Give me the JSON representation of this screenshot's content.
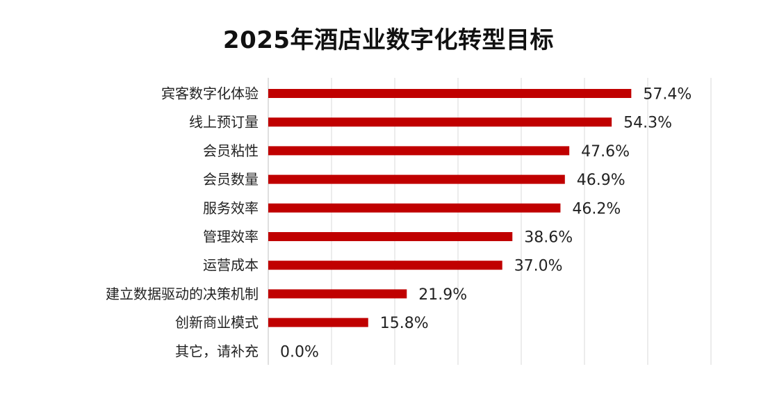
{
  "chart_data": {
    "type": "bar",
    "orientation": "horizontal",
    "title": "2025年酒店业数字化转型目标",
    "categories": [
      "宾客数字化体验",
      "线上预订量",
      "会员粘性",
      "会员数量",
      "服务效率",
      "管理效率",
      "运营成本",
      "建立数据驱动的决策机制",
      "创新商业模式",
      "其它，请补充"
    ],
    "values": [
      57.4,
      54.3,
      47.6,
      46.9,
      46.2,
      38.6,
      37.0,
      21.9,
      15.8,
      0.0
    ],
    "value_labels": [
      "57.4%",
      "54.3%",
      "47.6%",
      "46.9%",
      "46.2%",
      "38.6%",
      "37.0%",
      "21.9%",
      "15.8%",
      "0.0%"
    ],
    "xlim": [
      0,
      70
    ],
    "grid": true,
    "bar_color": "#c00000",
    "legend": "none"
  }
}
